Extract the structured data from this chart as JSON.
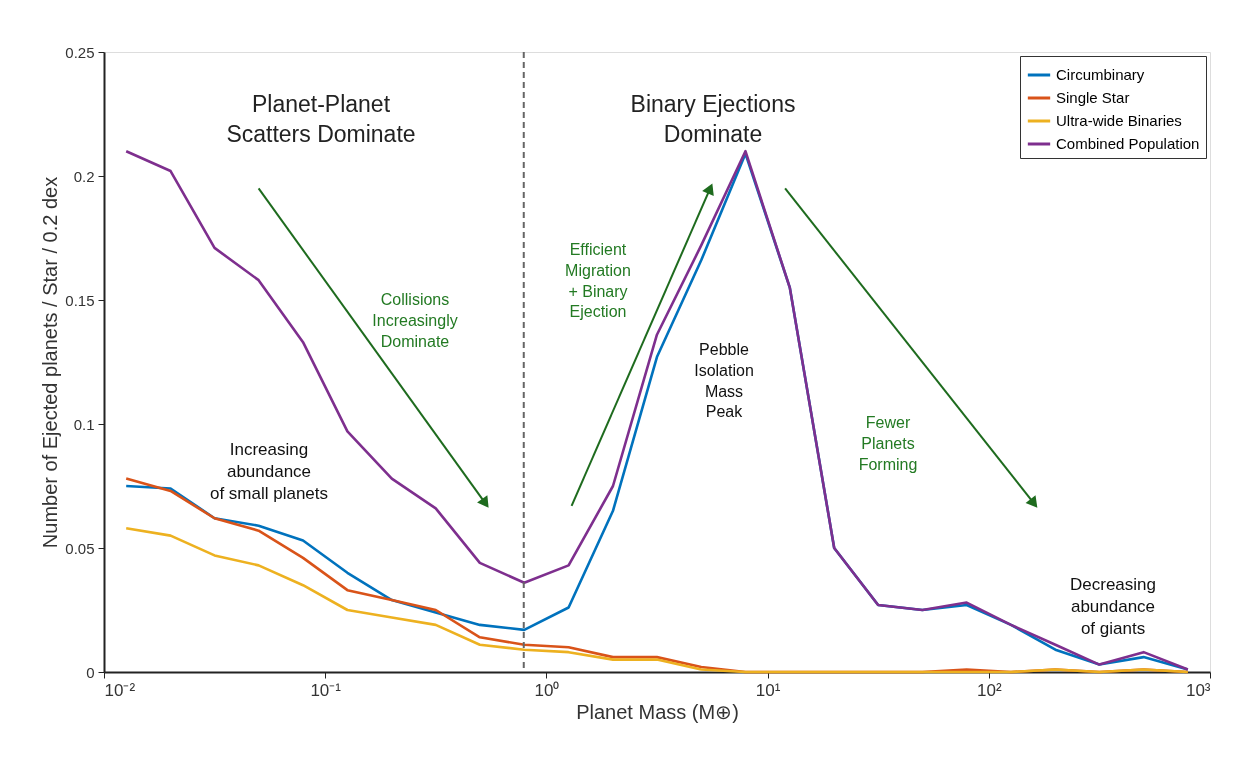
{
  "chart_data": {
    "type": "line",
    "xlabel": "Planet Mass (M⊕)",
    "ylabel": "Number of Ejected planets / Star / 0.2 dex",
    "log": "x",
    "grid": false,
    "legend": "top right",
    "marker": "none",
    "line_style": "solid",
    "x": [
      0.0126,
      0.02,
      0.0316,
      0.05,
      0.0794,
      0.126,
      0.2,
      0.316,
      0.5,
      0.794,
      1.26,
      2,
      3.16,
      5.01,
      7.94,
      12.6,
      20,
      31.6,
      50.1,
      79.4,
      126,
      200,
      316,
      501,
      794
    ],
    "xlim": [
      0.01,
      1000
    ],
    "xticks": [
      {
        "value": 0.01,
        "label": "10⁻²"
      },
      {
        "value": 0.1,
        "label": "10⁻¹"
      },
      {
        "value": 1,
        "label": "10⁰"
      },
      {
        "value": 10,
        "label": "10¹"
      },
      {
        "value": 100,
        "label": "10²"
      },
      {
        "value": 1000,
        "label": "10³"
      }
    ],
    "ylim": [
      0,
      0.25
    ],
    "yticks": [
      0,
      0.05,
      0.1,
      0.15,
      0.2,
      0.25
    ],
    "series": [
      {
        "name": "Circumbinary",
        "color": "#0072bd",
        "values": [
          0.075,
          0.074,
          0.062,
          0.059,
          0.053,
          0.04,
          0.029,
          0.024,
          0.019,
          0.017,
          0.026,
          0.065,
          0.127,
          0.166,
          0.209,
          0.155,
          0.05,
          0.027,
          0.025,
          0.027,
          0.019,
          0.009,
          0.003,
          0.006,
          0.001
        ]
      },
      {
        "name": "Single Star",
        "color": "#d95319",
        "values": [
          0.078,
          0.073,
          0.062,
          0.057,
          0.046,
          0.033,
          0.029,
          0.025,
          0.014,
          0.011,
          0.01,
          0.006,
          0.006,
          0.002,
          0,
          0,
          0,
          0,
          0,
          0.001,
          0,
          0.001,
          0,
          0.001,
          0
        ]
      },
      {
        "name": "Ultra-wide Binaries",
        "color": "#edb120",
        "values": [
          0.058,
          0.055,
          0.047,
          0.043,
          0.035,
          0.025,
          0.022,
          0.019,
          0.011,
          0.009,
          0.008,
          0.005,
          0.005,
          0.001,
          0,
          0,
          0,
          0,
          0,
          0,
          0,
          0.001,
          0,
          0.001,
          0
        ]
      },
      {
        "name": "Combined Population",
        "color": "#7e2f8e",
        "values": [
          0.21,
          0.202,
          0.171,
          0.158,
          0.133,
          0.097,
          0.078,
          0.066,
          0.044,
          0.036,
          0.043,
          0.075,
          0.136,
          0.172,
          0.21,
          0.155,
          0.05,
          0.027,
          0.025,
          0.028,
          0.019,
          0.011,
          0.003,
          0.008,
          0.001
        ]
      }
    ],
    "ref_lines": [
      {
        "axis": "x",
        "value": 0.79,
        "color": "#666666",
        "line_style": "dashed"
      }
    ],
    "annotations": [
      "Planet-Planet\nScatters Dominate",
      "Binary Ejections\nDominate",
      "Collisions\nIncreasingly\nDominate",
      "Efficient\nMigration\n+ Binary\nEjection",
      "Pebble\nIsolation\nMass\nPeak",
      "Fewer\nPlanets\nForming",
      "Increasing\nabundance\nof small planets",
      "Decreasing\nabundance\nof giants"
    ]
  }
}
